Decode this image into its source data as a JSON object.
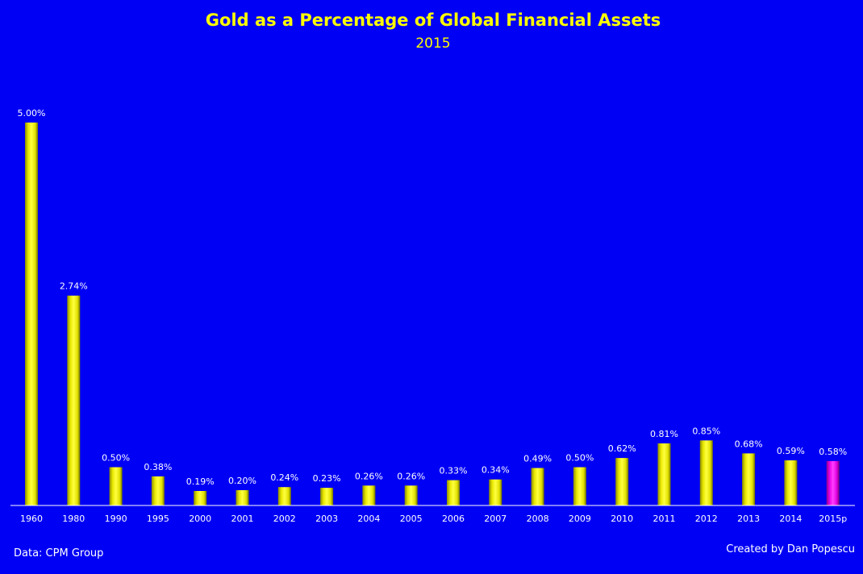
{
  "chart_data": {
    "type": "bar",
    "title": "Gold as a Percentage of Global Financial Assets",
    "subtitle": "2015",
    "categories": [
      "1960",
      "1980",
      "1990",
      "1995",
      "2000",
      "2001",
      "2002",
      "2003",
      "2004",
      "2005",
      "2006",
      "2007",
      "2008",
      "2009",
      "2010",
      "2011",
      "2012",
      "2013",
      "2014",
      "2015p"
    ],
    "values": [
      5.0,
      2.74,
      0.5,
      0.38,
      0.19,
      0.2,
      0.24,
      0.23,
      0.26,
      0.26,
      0.33,
      0.34,
      0.49,
      0.5,
      0.62,
      0.81,
      0.85,
      0.68,
      0.59,
      0.58
    ],
    "data_labels": [
      "5.00%",
      "2.74%",
      "0.50%",
      "0.38%",
      "0.19%",
      "0.20%",
      "0.24%",
      "0.23%",
      "0.26%",
      "0.26%",
      "0.33%",
      "0.34%",
      "0.49%",
      "0.50%",
      "0.62%",
      "0.81%",
      "0.85%",
      "0.68%",
      "0.59%",
      "0.58%"
    ],
    "ylim": [
      0,
      5
    ],
    "grid": false,
    "legend": "none",
    "highlight_category": "2015p"
  },
  "footer": {
    "source": "Data: CPM Group",
    "credit": "Created by Dan Popescu"
  },
  "colors": {
    "background": "#0000f5",
    "title": "#ffff00",
    "bar": "#ffff00",
    "bar_highlight": "#ff00ff",
    "text": "#ffffff",
    "axis": "#ffffff"
  }
}
